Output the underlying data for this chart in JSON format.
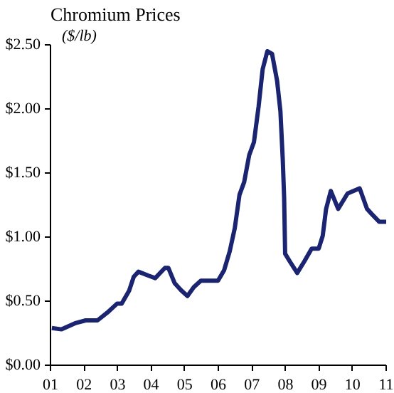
{
  "chart_data": {
    "type": "line",
    "title": "Chromium Prices",
    "ylabel": "($/lb)",
    "x": [
      2001.04,
      2001.33,
      2001.76,
      2002.05,
      2002.4,
      2002.69,
      2002.98,
      2003.12,
      2003.34,
      2003.48,
      2003.62,
      2003.91,
      2004.12,
      2004.41,
      2004.51,
      2004.7,
      2004.91,
      2005.08,
      2005.27,
      2005.48,
      2005.7,
      2005.99,
      2006.17,
      2006.34,
      2006.49,
      2006.63,
      2006.77,
      2006.92,
      2007.06,
      2007.2,
      2007.32,
      2007.46,
      2007.6,
      2007.75,
      2007.85,
      2007.92,
      2007.96,
      2007.99,
      2008.13,
      2008.35,
      2008.56,
      2008.78,
      2008.99,
      2009.11,
      2009.21,
      2009.35,
      2009.57,
      2009.85,
      2010.21,
      2010.43,
      2010.57,
      2010.79,
      2011.0
    ],
    "series": [
      {
        "color": "#1a2470",
        "values": [
          0.29,
          0.28,
          0.33,
          0.35,
          0.35,
          0.41,
          0.48,
          0.48,
          0.58,
          0.69,
          0.73,
          0.7,
          0.68,
          0.76,
          0.76,
          0.64,
          0.58,
          0.54,
          0.61,
          0.66,
          0.66,
          0.66,
          0.74,
          0.89,
          1.07,
          1.33,
          1.43,
          1.64,
          1.74,
          2.02,
          2.31,
          2.45,
          2.43,
          2.22,
          1.98,
          1.6,
          1.31,
          0.87,
          0.81,
          0.72,
          0.81,
          0.91,
          0.91,
          1.01,
          1.22,
          1.36,
          1.22,
          1.34,
          1.38,
          1.22,
          1.18,
          1.12,
          1.12
        ]
      }
    ],
    "xlim": [
      2001,
      2011
    ],
    "xticks": [
      {
        "value": 2001,
        "label": "01"
      },
      {
        "value": 2002,
        "label": "02"
      },
      {
        "value": 2003,
        "label": "03"
      },
      {
        "value": 2004,
        "label": "04"
      },
      {
        "value": 2005,
        "label": "05"
      },
      {
        "value": 2006,
        "label": "06"
      },
      {
        "value": 2007,
        "label": "07"
      },
      {
        "value": 2008,
        "label": "08"
      },
      {
        "value": 2009,
        "label": "09"
      },
      {
        "value": 2010,
        "label": "10"
      },
      {
        "value": 2011,
        "label": "11"
      }
    ],
    "ylim": [
      0,
      2.5
    ],
    "yticks": [
      {
        "value": 0,
        "label": "$0.00"
      },
      {
        "value": 0.5,
        "label": "$0.50"
      },
      {
        "value": 1,
        "label": "$1.00"
      },
      {
        "value": 1.5,
        "label": "$1.50"
      },
      {
        "value": 2,
        "label": "$2.00"
      },
      {
        "value": 2.5,
        "label": "$2.50"
      }
    ],
    "line_style": "solid"
  }
}
